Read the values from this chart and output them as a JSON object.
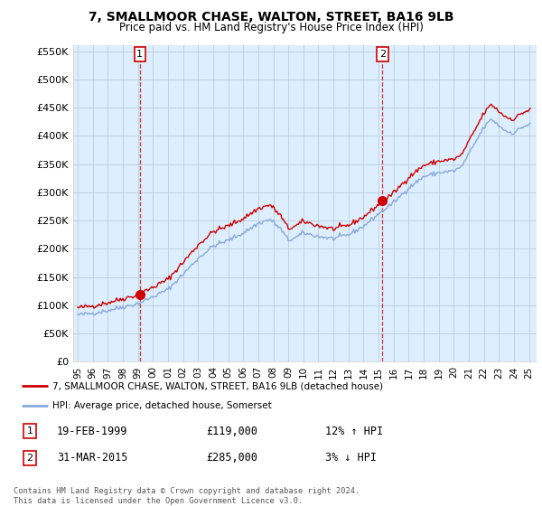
{
  "title": "7, SMALLMOOR CHASE, WALTON, STREET, BA16 9LB",
  "subtitle": "Price paid vs. HM Land Registry's House Price Index (HPI)",
  "ylim": [
    0,
    560000
  ],
  "yticks": [
    0,
    50000,
    100000,
    150000,
    200000,
    250000,
    300000,
    350000,
    400000,
    450000,
    500000,
    550000
  ],
  "ytick_labels": [
    "£0",
    "£50K",
    "£100K",
    "£150K",
    "£200K",
    "£250K",
    "£300K",
    "£350K",
    "£400K",
    "£450K",
    "£500K",
    "£550K"
  ],
  "legend_label_red": "7, SMALLMOOR CHASE, WALTON, STREET, BA16 9LB (detached house)",
  "legend_label_blue": "HPI: Average price, detached house, Somerset",
  "transaction1_date": "19-FEB-1999",
  "transaction1_price": "£119,000",
  "transaction1_hpi": "12% ↑ HPI",
  "transaction2_date": "31-MAR-2015",
  "transaction2_price": "£285,000",
  "transaction2_hpi": "3% ↓ HPI",
  "footer": "Contains HM Land Registry data © Crown copyright and database right 2024.\nThis data is licensed under the Open Government Licence v3.0.",
  "red_color": "#cc0000",
  "blue_color": "#88aadd",
  "plot_bg_color": "#ddeeff",
  "background_color": "#ffffff",
  "sale1_x": 1999.13,
  "sale1_y": 119000,
  "sale2_x": 2015.25,
  "sale2_y": 285000,
  "xlim_start": 1994.7,
  "xlim_end": 2025.5,
  "xtick_years": [
    1995,
    1996,
    1997,
    1998,
    1999,
    2000,
    2001,
    2002,
    2003,
    2004,
    2005,
    2006,
    2007,
    2008,
    2009,
    2010,
    2011,
    2012,
    2013,
    2014,
    2015,
    2016,
    2017,
    2018,
    2019,
    2020,
    2021,
    2022,
    2023,
    2024,
    2025
  ]
}
